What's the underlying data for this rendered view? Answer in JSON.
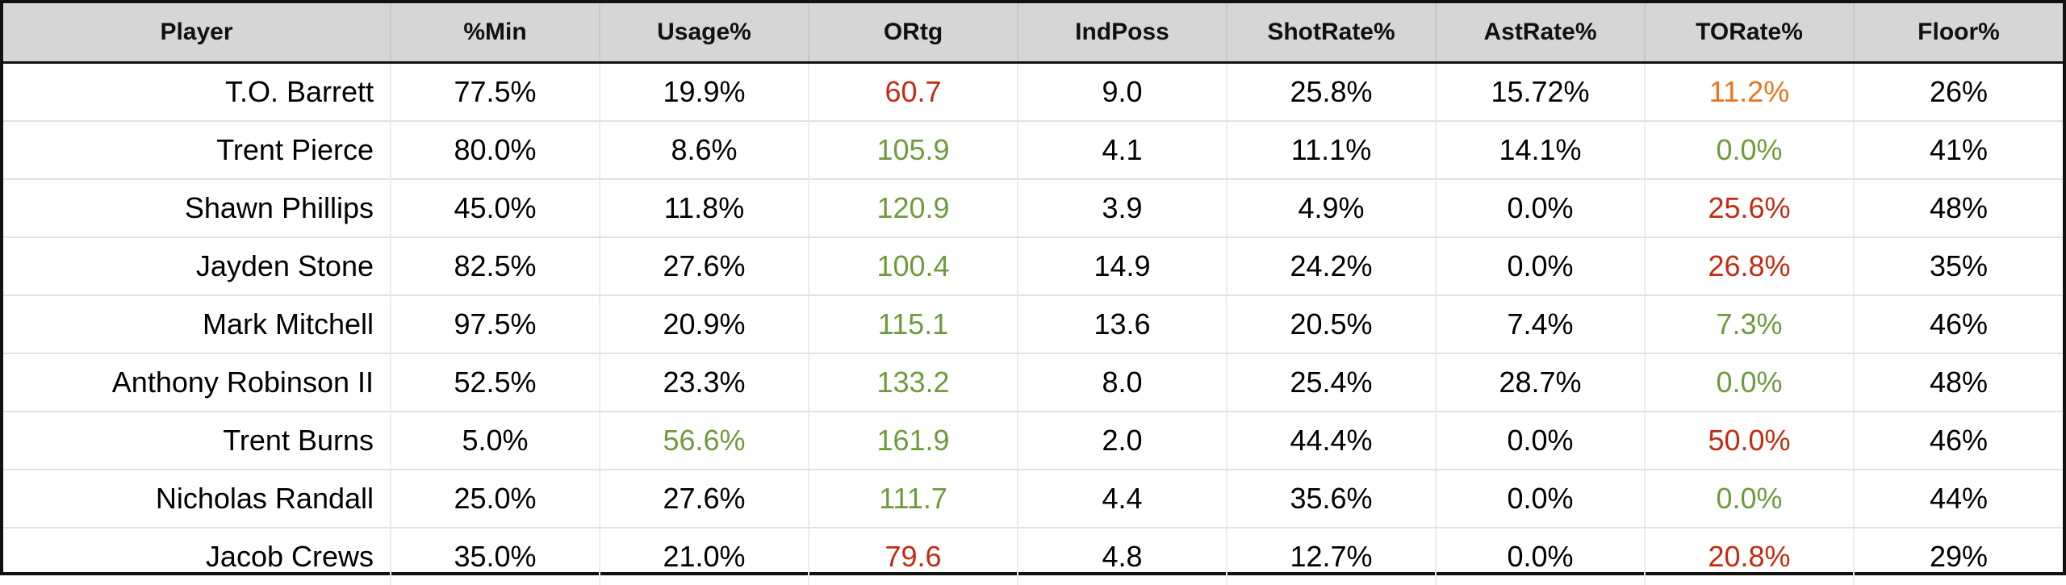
{
  "table": {
    "header": [
      "Player",
      "%Min",
      "Usage%",
      "ORtg",
      "IndPoss",
      "ShotRate%",
      "AstRate%",
      "TORate%",
      "Floor%"
    ],
    "rows": [
      [
        "T.O. Barrett",
        "77.5%",
        "19.9%",
        {
          "text": "60.7",
          "color": "#c42b12"
        },
        "9.0",
        "25.8%",
        "15.72%",
        {
          "text": "11.2%",
          "color": "#e8751e"
        },
        "26%"
      ],
      [
        "Trent Pierce",
        "80.0%",
        "8.6%",
        {
          "text": "105.9",
          "color": "#6f9b3c"
        },
        "4.1",
        "11.1%",
        "14.1%",
        {
          "text": "0.0%",
          "color": "#6f9b3c"
        },
        "41%"
      ],
      [
        "Shawn Phillips",
        "45.0%",
        "11.8%",
        {
          "text": "120.9",
          "color": "#6f9b3c"
        },
        "3.9",
        "4.9%",
        "0.0%",
        {
          "text": "25.6%",
          "color": "#c42b12"
        },
        "48%"
      ],
      [
        "Jayden Stone",
        "82.5%",
        "27.6%",
        {
          "text": "100.4",
          "color": "#6f9b3c"
        },
        "14.9",
        "24.2%",
        "0.0%",
        {
          "text": "26.8%",
          "color": "#c42b12"
        },
        "35%"
      ],
      [
        "Mark Mitchell",
        "97.5%",
        "20.9%",
        {
          "text": "115.1",
          "color": "#6f9b3c"
        },
        "13.6",
        "20.5%",
        "7.4%",
        {
          "text": "7.3%",
          "color": "#6f9b3c"
        },
        "46%"
      ],
      [
        "Anthony Robinson II",
        "52.5%",
        "23.3%",
        {
          "text": "133.2",
          "color": "#6f9b3c"
        },
        "8.0",
        "25.4%",
        "28.7%",
        {
          "text": "0.0%",
          "color": "#6f9b3c"
        },
        "48%"
      ],
      [
        "Trent Burns",
        "5.0%",
        {
          "text": "56.6%",
          "color": "#6f9b3c"
        },
        {
          "text": "161.9",
          "color": "#6f9b3c"
        },
        "2.0",
        "44.4%",
        "0.0%",
        {
          "text": "50.0%",
          "color": "#c42b12"
        },
        "46%"
      ],
      [
        "Nicholas Randall",
        "25.0%",
        "27.6%",
        {
          "text": "111.7",
          "color": "#6f9b3c"
        },
        "4.4",
        "35.6%",
        "0.0%",
        {
          "text": "0.0%",
          "color": "#6f9b3c"
        },
        "44%"
      ],
      [
        "Jacob Crews",
        "35.0%",
        "21.0%",
        {
          "text": "79.6",
          "color": "#c42b12"
        },
        "4.8",
        "12.7%",
        "0.0%",
        {
          "text": "20.8%",
          "color": "#c42b12"
        },
        "29%"
      ]
    ]
  }
}
